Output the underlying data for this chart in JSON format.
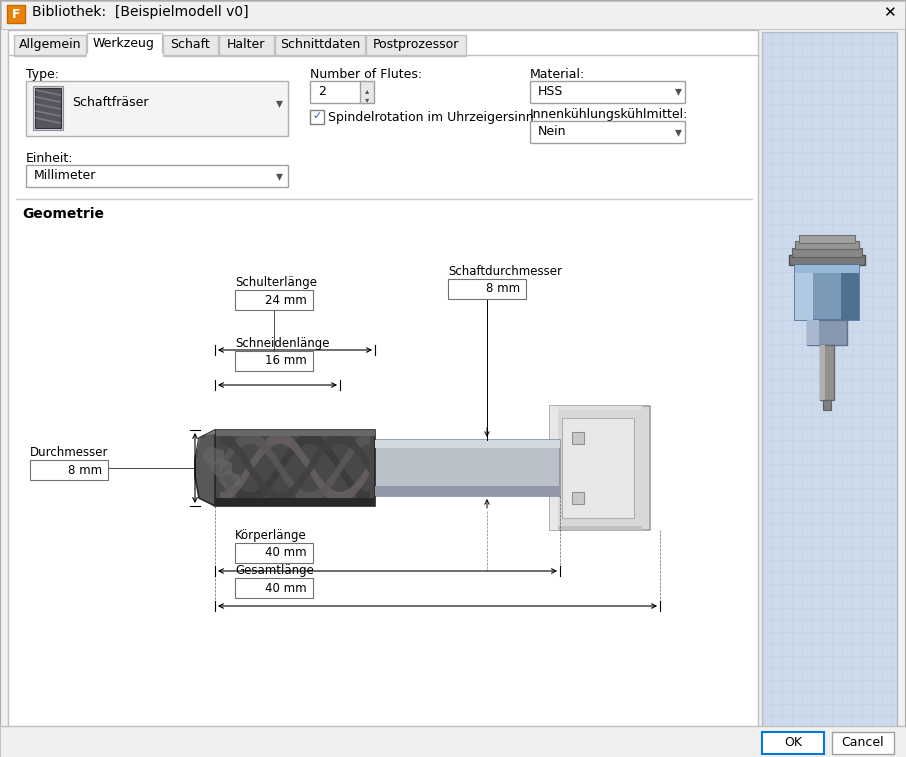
{
  "title": "Bibliothek:  [Beispielmodell v0]",
  "bg_color": "#f0f0f0",
  "white": "#ffffff",
  "tabs": [
    "Allgemein",
    "Werkzeug",
    "Schaft",
    "Halter",
    "Schnittdaten",
    "Postprozessor"
  ],
  "active_tab": "Werkzeug",
  "type_label": "Type:",
  "type_value": "Schaftfräser",
  "flutes_label": "Number of Flutes:",
  "flutes_value": "2",
  "checkbox_label": "Spindelrotation im Uhrzeigersinn",
  "material_label": "Material:",
  "material_value": "HSS",
  "cooling_label": "Innenkühlungskühlmittel:",
  "cooling_value": "Nein",
  "einheit_label": "Einheit:",
  "einheit_value": "Millimeter",
  "geometrie_label": "Geometrie",
  "schulterlaenge_label": "Schulterlänge",
  "schulterlaenge_value": "24 mm",
  "schneidenlaenge_label": "Schneidenlänge",
  "schneidenlaenge_value": "16 mm",
  "schaftdurchmesser_label": "Schaftdurchmesser",
  "schaftdurchmesser_value": "8 mm",
  "durchmesser_label": "Durchmesser",
  "durchmesser_value": "8 mm",
  "koerperlaenge_label": "Körperlänge",
  "koerperlaenge_value": "40 mm",
  "gesamtlaenge_label": "Gesamtlänge",
  "gesamtlaenge_value": "40 mm",
  "ok_btn": "OK",
  "cancel_btn": "Cancel",
  "border_color": "#c8c8c8",
  "btn_blue": "#0078d7",
  "text_color": "#000000",
  "grid_bg": "#ccdaeb",
  "separator_color": "#c0c0c0",
  "tab_widths": [
    72,
    75,
    55,
    55,
    90,
    100
  ]
}
